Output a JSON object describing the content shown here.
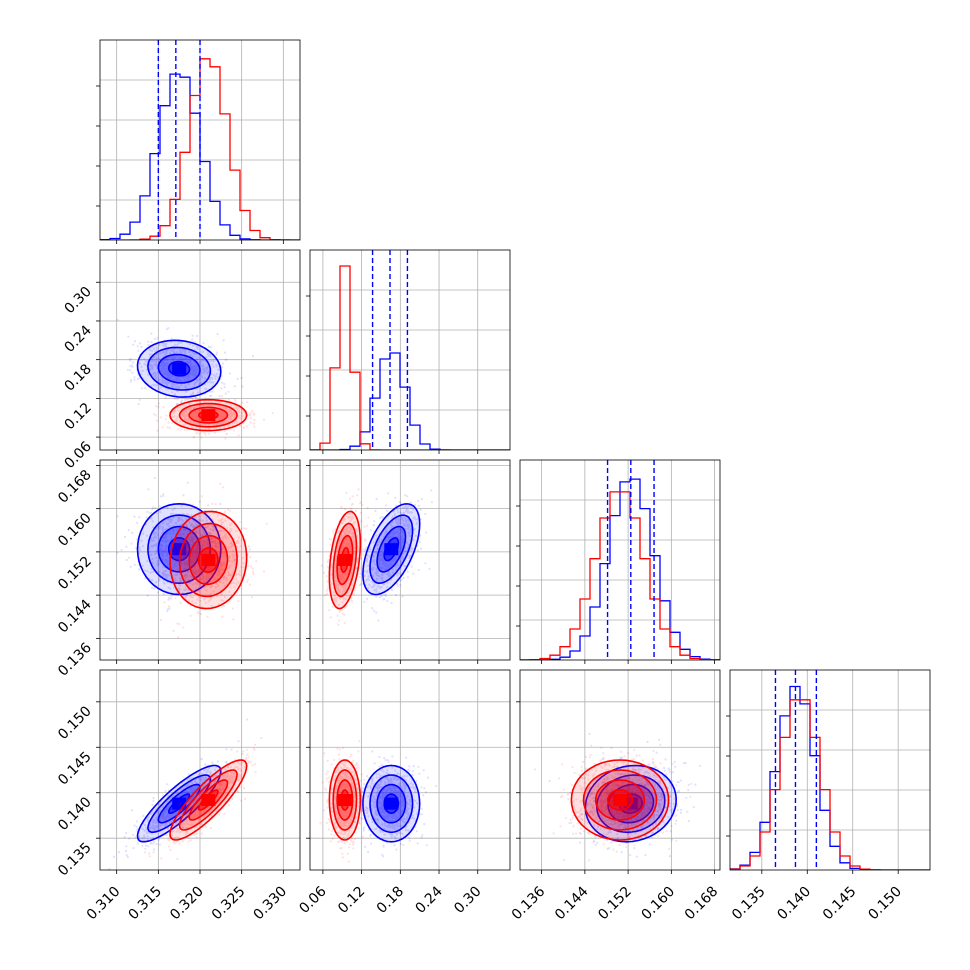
{
  "chart_data": {
    "type": "corner",
    "colors": {
      "series_a": "#0000ff",
      "series_b": "#ff0000",
      "quantile_lines": "#0000ff"
    },
    "grid": true,
    "params": [
      {
        "name": "",
        "range": [
          0.308,
          0.332
        ],
        "ticks": [
          0.31,
          0.315,
          0.32,
          0.325,
          0.33
        ],
        "tick_labels": [
          "0.310",
          "0.315",
          "0.320",
          "0.325",
          "0.330"
        ]
      },
      {
        "name": "",
        "range": [
          0.04,
          0.35
        ],
        "ticks": [
          0.06,
          0.12,
          0.18,
          0.24,
          0.3
        ],
        "tick_labels": [
          "0.06",
          "0.12",
          "0.18",
          "0.24",
          "0.30"
        ]
      },
      {
        "name": "",
        "range": [
          0.132,
          0.169
        ],
        "ticks": [
          0.136,
          0.144,
          0.152,
          0.16,
          0.168
        ],
        "tick_labels": [
          "0.136",
          "0.144",
          "0.152",
          "0.160",
          "0.168"
        ]
      },
      {
        "name": "",
        "range": [
          0.1315,
          0.1535
        ],
        "ticks": [
          0.135,
          0.14,
          0.145,
          0.15
        ],
        "tick_labels": [
          "0.135",
          "0.140",
          "0.145",
          "0.150"
        ]
      }
    ],
    "series": [
      {
        "name": "",
        "color": "#0000ff",
        "mean": [
          0.3175,
          0.166,
          0.1525,
          0.1388
        ],
        "std": [
          0.0025,
          0.022,
          0.0042,
          0.0021
        ]
      },
      {
        "name": "",
        "color": "#ff0000",
        "mean": [
          0.321,
          0.094,
          0.1505,
          0.1392
        ],
        "std": [
          0.0023,
          0.012,
          0.0045,
          0.0022
        ]
      }
    ],
    "correlations": [
      {
        "series": 0,
        "pair": [
          0,
          1
        ],
        "rho": -0.1
      },
      {
        "series": 1,
        "pair": [
          0,
          1
        ],
        "rho": 0.0
      },
      {
        "series": 0,
        "pair": [
          0,
          2
        ],
        "rho": 0.0
      },
      {
        "series": 1,
        "pair": [
          0,
          2
        ],
        "rho": 0.05
      },
      {
        "series": 0,
        "pair": [
          1,
          2
        ],
        "rho": 0.55
      },
      {
        "series": 1,
        "pair": [
          1,
          2
        ],
        "rho": 0.35
      },
      {
        "series": 0,
        "pair": [
          0,
          3
        ],
        "rho": 0.85
      },
      {
        "series": 1,
        "pair": [
          0,
          3
        ],
        "rho": 0.85
      },
      {
        "series": 0,
        "pair": [
          1,
          3
        ],
        "rho": 0.0
      },
      {
        "series": 1,
        "pair": [
          1,
          3
        ],
        "rho": 0.0
      },
      {
        "series": 0,
        "pair": [
          2,
          3
        ],
        "rho": 0.1
      },
      {
        "series": 1,
        "pair": [
          2,
          3
        ],
        "rho": 0.0
      }
    ],
    "quantiles": [
      [
        0.315,
        0.3171,
        0.32
      ],
      [
        0.137,
        0.164,
        0.191
      ],
      [
        0.1482,
        0.1525,
        0.1568
      ],
      [
        0.1365,
        0.1387,
        0.141
      ]
    ],
    "histogram_bins": 20
  }
}
